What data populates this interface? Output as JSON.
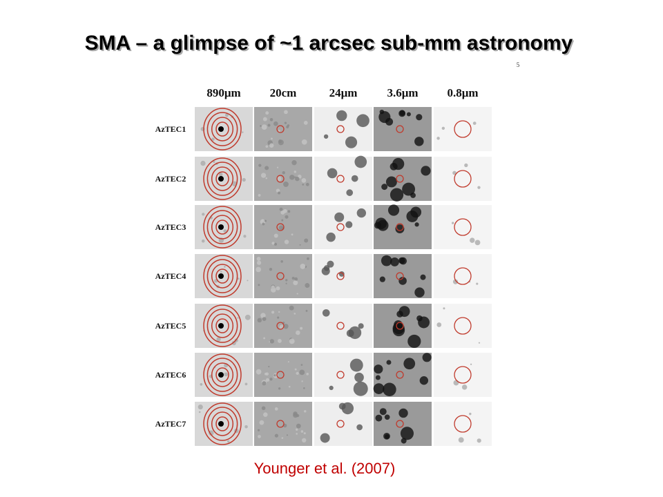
{
  "title": "SMA – a glimpse of ~1 arcsec sub-mm astronomy",
  "page_number": "5",
  "figure": {
    "columns": [
      "890μm",
      "20cm",
      "24μm",
      "3.6μm",
      "0.8μm"
    ],
    "rows": [
      "AzTEC1",
      "AzTEC2",
      "AzTEC3",
      "AzTEC4",
      "AzTEC5",
      "AzTEC6",
      "AzTEC7"
    ]
  },
  "caption": "Younger et al. (2007)"
}
